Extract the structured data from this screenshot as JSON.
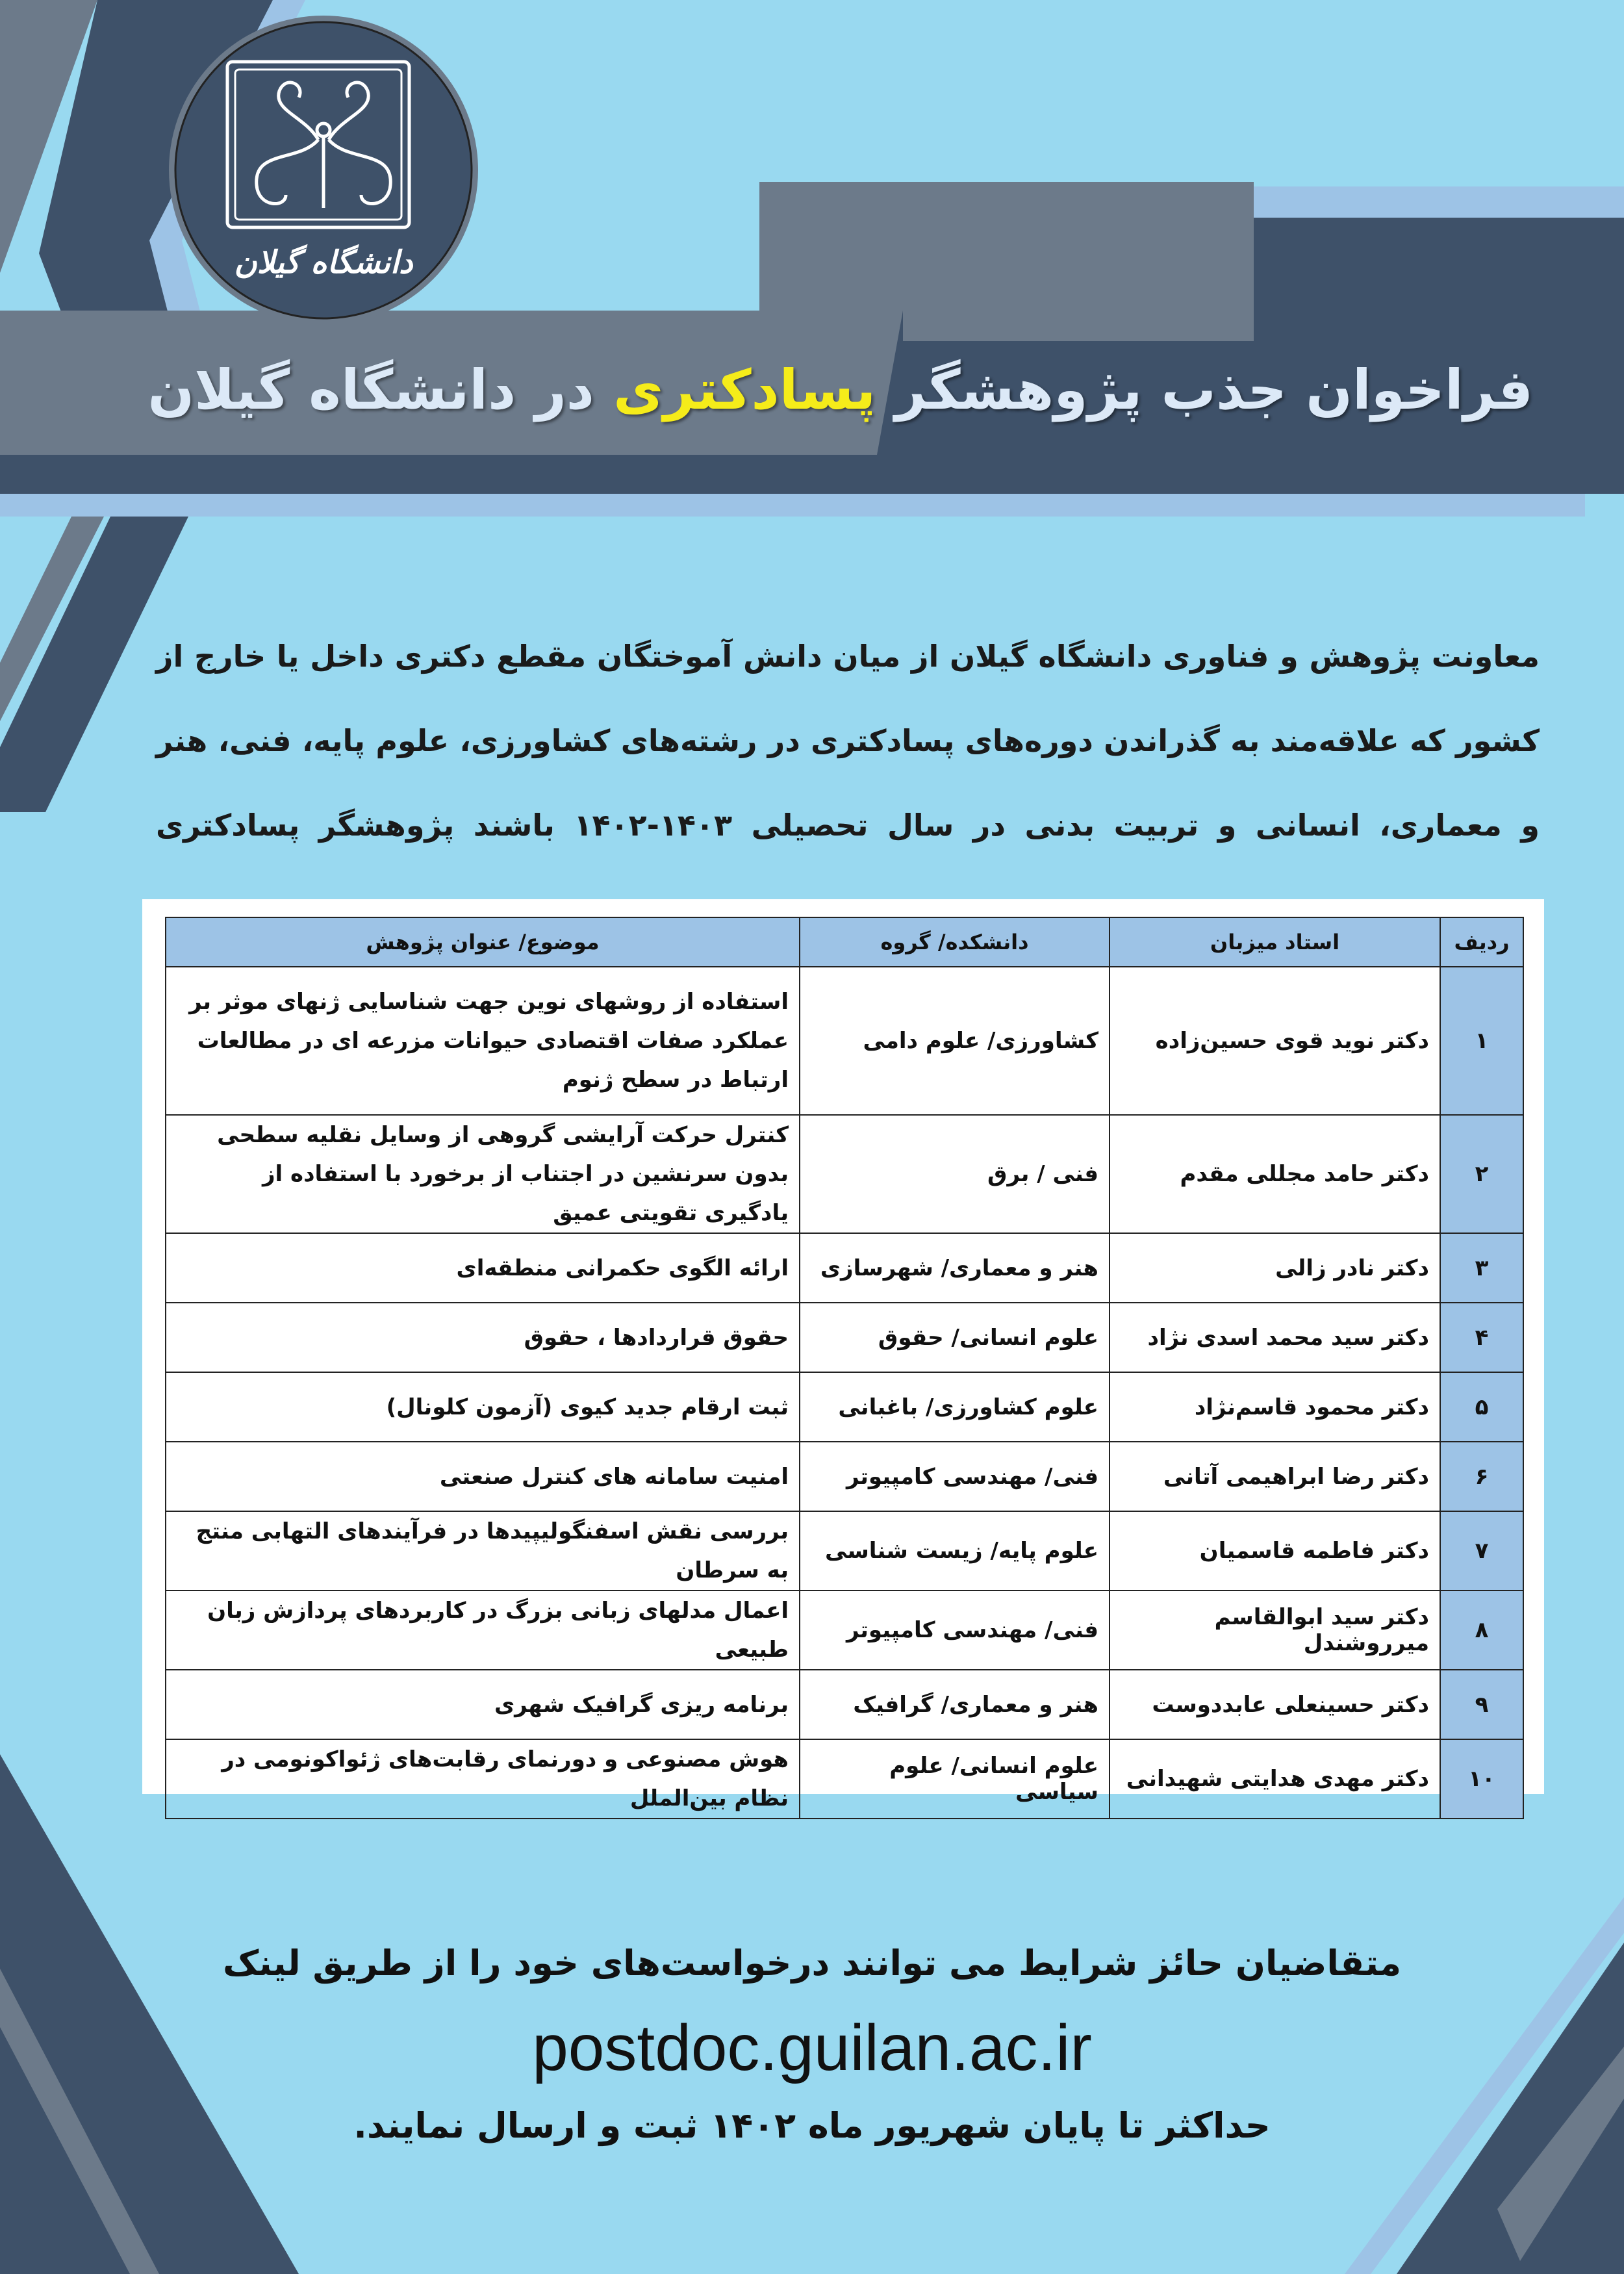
{
  "colors": {
    "background": "#99d9f0",
    "dark_band": "#3e5169",
    "gray_band": "#6c7a8a",
    "light_stripe": "#9dc3e6",
    "highlight": "#f5ec1a",
    "title_text": "#dce9f7"
  },
  "logo": {
    "text": "دانشگاه گیلان",
    "icon": "university-of-guilan-emblem"
  },
  "header": {
    "title_part1": "فراخوان جذب پژوهشگر",
    "title_highlight": "پسادکتری",
    "title_part2": "در دانشگاه گیلان"
  },
  "intro": "معاونت پژوهش و فناوری دانشگاه گیلان از میان دانش آموختگان مقطع دکتری داخل یا خارج از کشور که علاقه‌مند به گذراندن دوره‌های پسادکتری در رشته‌های کشاورزی، علوم پایه، فنی، هنر و معماری، انسانی و تربیت بدنی در سال تحصیلی ۱۴۰۳-۱۴۰۲ باشند پژوهشگر پسادکتری می‌پذیرد.",
  "table": {
    "headers": {
      "row": "ردیف",
      "host": "استاد میزبان",
      "faculty": "دانشکده/ گروه",
      "topic": "موضوع/ عنوان پژوهش"
    },
    "rows": [
      {
        "row": "۱",
        "host": "دکتر نوید قوی حسین‌زاده",
        "faculty": "کشاورزی/ علوم دامی",
        "topic": "استفاده از روشهای نوین جهت شناسایی ژنهای موثر بر عملکرد صفات اقتصادی حیوانات مزرعه ای در مطالعات ارتباط در سطح ژنوم"
      },
      {
        "row": "۲",
        "host": "دکتر حامد مجللی مقدم",
        "faculty": "فنی / برق",
        "topic": "کنترل حرکت آرایشی گروهی از وسایل نقلیه سطحی بدون سرنشین در اجتناب از برخورد با استفاده از یادگیری تقویتی عمیق"
      },
      {
        "row": "۳",
        "host": "دکتر نادر زالی",
        "faculty": "هنر و معماری/ شهرسازی",
        "topic": "ارائه الگوی حکمرانی منطقه‌ای"
      },
      {
        "row": "۴",
        "host": "دکتر سید محمد اسدی نژاد",
        "faculty": "علوم انسانی/ حقوق",
        "topic": "حقوق قراردادها ، حقوق"
      },
      {
        "row": "۵",
        "host": "دکتر محمود قاسم‌نژاد",
        "faculty": "علوم کشاورزی/ باغبانی",
        "topic": "ثبت ارقام جدید کیوی (آزمون کلونال)"
      },
      {
        "row": "۶",
        "host": "دکتر رضا ابراهیمی آتانی",
        "faculty": "فنی/ مهندسی کامپیوتر",
        "topic": "امنیت سامانه های کنترل صنعتی"
      },
      {
        "row": "۷",
        "host": "دکتر فاطمه قاسمیان",
        "faculty": "علوم پایه/ زیست شناسی",
        "topic": "بررسی نقش اسفنگولیپیدها در فرآیندهای التهابی منتج به سرطان"
      },
      {
        "row": "۸",
        "host": "دکتر سید ابوالقاسم میرروشندل",
        "faculty": "فنی/ مهندسی کامپیوتر",
        "topic": "اعمال مدلهای زبانی بزرگ در کاربردهای پردازش زبان طبیعی"
      },
      {
        "row": "۹",
        "host": "دکتر حسینعلی عابددوست",
        "faculty": "هنر و معماری/ گرافیک",
        "topic": "برنامه ریزی گرافیک شهری"
      },
      {
        "row": "۱۰",
        "host": "دکتر مهدی هدایتی شهیدانی",
        "faculty": "علوم انسانی/ علوم سیاسی",
        "topic": "هوش مصنوعی و دورنمای رقابت‌های ژئواکونومی در نظام بین‌الملل"
      }
    ]
  },
  "footer": {
    "line1": "متقاضیان حائز شرایط می توانند درخواست‌های خود را از طریق لینک",
    "url": "postdoc.guilan.ac.ir",
    "line2": "حداکثر تا پایان شهریور ماه ۱۴۰۲ ثبت و ارسال نمایند."
  }
}
